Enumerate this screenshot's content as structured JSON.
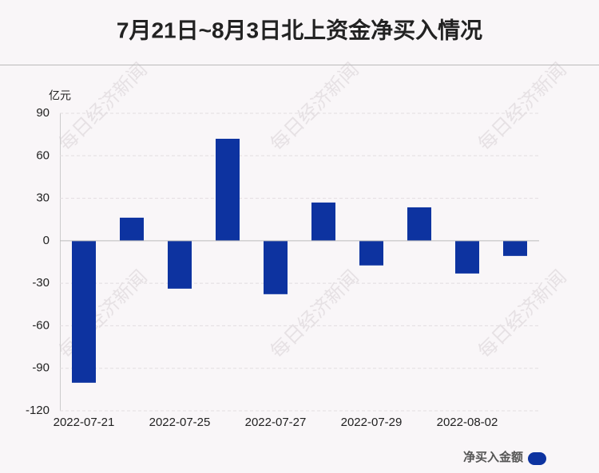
{
  "chart_data": {
    "type": "bar",
    "title": "7月21日~8月3日北上资金净买入情况",
    "y_label": "亿元",
    "watermark": "每日经济新闻",
    "categories": [
      "2022-07-21",
      null,
      "2022-07-25",
      null,
      "2022-07-27",
      null,
      "2022-07-29",
      null,
      "2022-08-02",
      null
    ],
    "series": [
      {
        "name": "净买入金额",
        "color": "#0d33a0",
        "values": [
          -100.2,
          16.3,
          -33.8,
          72,
          -37.7,
          27,
          -17.4,
          23.6,
          -23.1,
          -10.7
        ]
      }
    ],
    "ylim": [
      -120,
      90
    ],
    "yticks": [
      -120,
      -90,
      -60,
      -30,
      0,
      30,
      60,
      90
    ],
    "grid": true,
    "legend": "bottom-right"
  }
}
